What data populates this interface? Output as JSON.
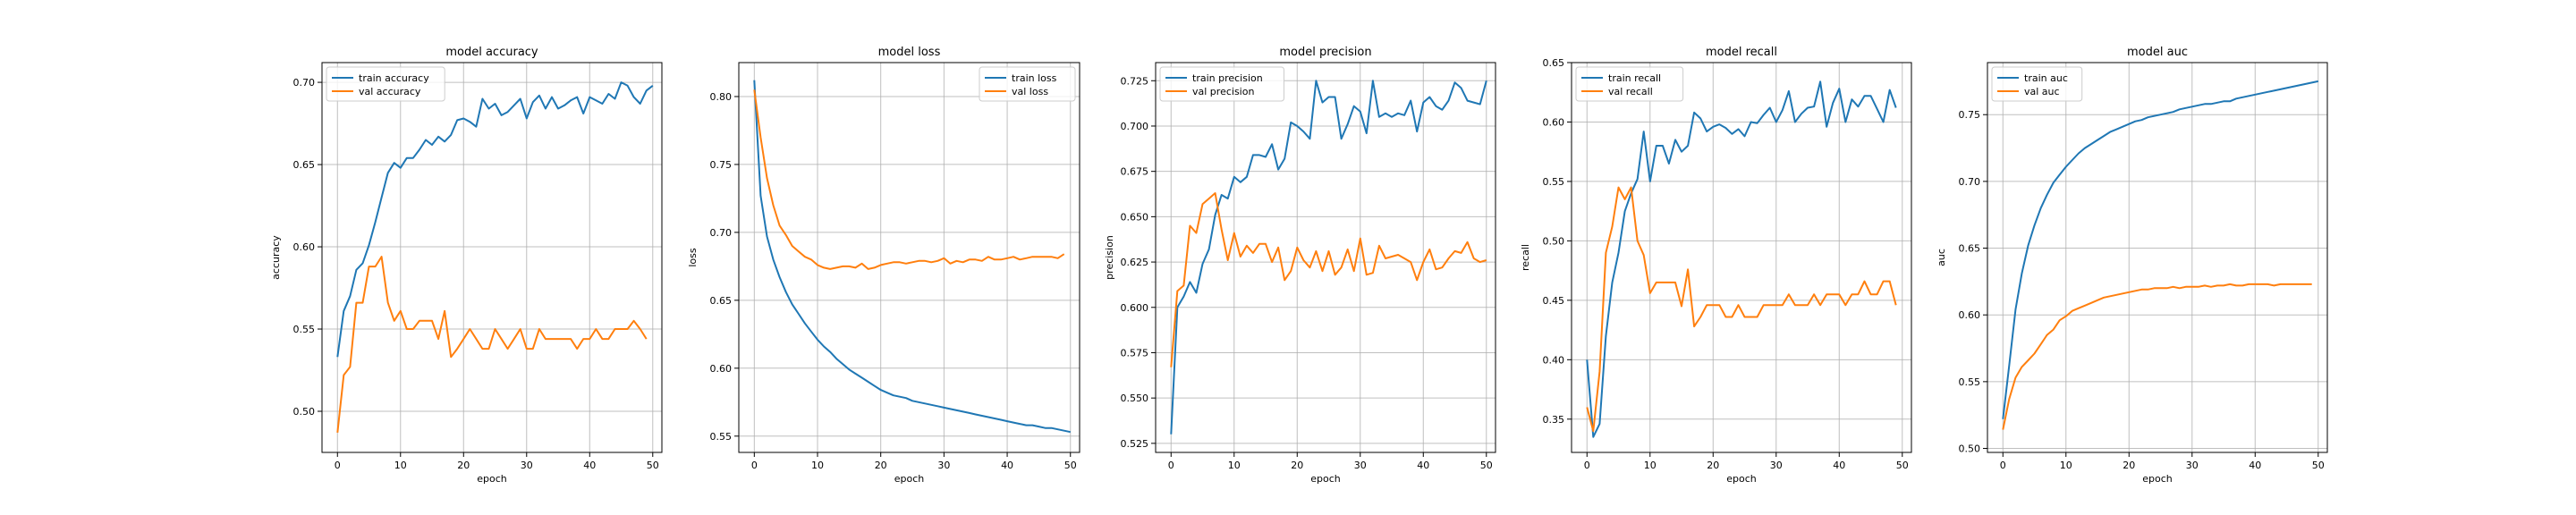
{
  "chart_data": [
    {
      "type": "line",
      "title": "model accuracy",
      "xlabel": "epoch",
      "ylabel": "accuracy",
      "xlim": [
        -2.45,
        51.45
      ],
      "ylim": [
        0.475,
        0.712
      ],
      "xticks": [
        0,
        10,
        20,
        30,
        40,
        50
      ],
      "yticks": [
        0.5,
        0.55,
        0.6,
        0.65,
        0.7
      ],
      "ytick_labels": [
        "0.50",
        "0.55",
        "0.60",
        "0.65",
        "0.70"
      ],
      "grid": true,
      "legend": "upper-left",
      "series": [
        {
          "name": "train accuracy",
          "color": "#1f77b4",
          "values": [
            0.533,
            0.561,
            0.57,
            0.586,
            0.59,
            0.601,
            0.615,
            0.63,
            0.645,
            0.651,
            0.648,
            0.654,
            0.654,
            0.659,
            0.665,
            0.662,
            0.667,
            0.664,
            0.668,
            0.677,
            0.678,
            0.676,
            0.673,
            0.69,
            0.684,
            0.687,
            0.68,
            0.682,
            0.686,
            0.69,
            0.678,
            0.688,
            0.692,
            0.684,
            0.691,
            0.684,
            0.686,
            0.689,
            0.691,
            0.681,
            0.691,
            0.689,
            0.687,
            0.693,
            0.69,
            0.7,
            0.698,
            0.691,
            0.687,
            0.695,
            0.698
          ]
        },
        {
          "name": "val accuracy",
          "color": "#ff7f0e",
          "values": [
            0.487,
            0.522,
            0.527,
            0.566,
            0.566,
            0.588,
            0.588,
            0.594,
            0.566,
            0.555,
            0.561,
            0.55,
            0.55,
            0.555,
            0.555,
            0.555,
            0.544,
            0.561,
            0.533,
            0.538,
            0.544,
            0.55,
            0.544,
            0.538,
            0.538,
            0.55,
            0.544,
            0.538,
            0.544,
            0.55,
            0.538,
            0.538,
            0.55,
            0.544,
            0.544,
            0.544,
            0.544,
            0.544,
            0.538,
            0.544,
            0.544,
            0.55,
            0.544,
            0.544,
            0.55,
            0.55,
            0.55,
            0.555,
            0.55,
            0.544
          ]
        }
      ]
    },
    {
      "type": "line",
      "title": "model loss",
      "xlabel": "epoch",
      "ylabel": "loss",
      "xlim": [
        -2.45,
        51.45
      ],
      "ylim": [
        0.538,
        0.825
      ],
      "xticks": [
        0,
        10,
        20,
        30,
        40,
        50
      ],
      "yticks": [
        0.55,
        0.6,
        0.65,
        0.7,
        0.75,
        0.8
      ],
      "ytick_labels": [
        "0.55",
        "0.60",
        "0.65",
        "0.70",
        "0.75",
        "0.80"
      ],
      "grid": true,
      "legend": "upper-right",
      "series": [
        {
          "name": "train loss",
          "color": "#1f77b4",
          "values": [
            0.812,
            0.727,
            0.697,
            0.68,
            0.667,
            0.656,
            0.647,
            0.64,
            0.633,
            0.627,
            0.621,
            0.616,
            0.612,
            0.607,
            0.603,
            0.599,
            0.596,
            0.593,
            0.59,
            0.587,
            0.584,
            0.582,
            0.58,
            0.579,
            0.578,
            0.576,
            0.575,
            0.574,
            0.573,
            0.572,
            0.571,
            0.57,
            0.569,
            0.568,
            0.567,
            0.566,
            0.565,
            0.564,
            0.563,
            0.562,
            0.561,
            0.56,
            0.559,
            0.558,
            0.558,
            0.557,
            0.556,
            0.556,
            0.555,
            0.554,
            0.553
          ]
        },
        {
          "name": "val loss",
          "color": "#ff7f0e",
          "values": [
            0.805,
            0.77,
            0.74,
            0.72,
            0.705,
            0.698,
            0.69,
            0.686,
            0.682,
            0.68,
            0.676,
            0.674,
            0.673,
            0.674,
            0.675,
            0.675,
            0.674,
            0.677,
            0.673,
            0.674,
            0.676,
            0.677,
            0.678,
            0.678,
            0.677,
            0.678,
            0.679,
            0.679,
            0.678,
            0.679,
            0.681,
            0.677,
            0.679,
            0.678,
            0.68,
            0.68,
            0.679,
            0.682,
            0.68,
            0.68,
            0.681,
            0.682,
            0.68,
            0.681,
            0.682,
            0.682,
            0.682,
            0.682,
            0.681,
            0.684
          ]
        }
      ]
    },
    {
      "type": "line",
      "title": "model precision",
      "xlabel": "epoch",
      "ylabel": "precision",
      "xlim": [
        -2.45,
        51.45
      ],
      "ylim": [
        0.52,
        0.735
      ],
      "xticks": [
        0,
        10,
        20,
        30,
        40,
        50
      ],
      "yticks": [
        0.525,
        0.55,
        0.575,
        0.6,
        0.625,
        0.65,
        0.675,
        0.7,
        0.725
      ],
      "ytick_labels": [
        "0.525",
        "0.550",
        "0.575",
        "0.600",
        "0.625",
        "0.650",
        "0.675",
        "0.700",
        "0.725"
      ],
      "grid": true,
      "legend": "upper-left",
      "series": [
        {
          "name": "train precision",
          "color": "#1f77b4",
          "values": [
            0.53,
            0.6,
            0.606,
            0.614,
            0.608,
            0.624,
            0.632,
            0.651,
            0.662,
            0.66,
            0.672,
            0.669,
            0.672,
            0.684,
            0.684,
            0.683,
            0.69,
            0.676,
            0.682,
            0.702,
            0.7,
            0.697,
            0.693,
            0.725,
            0.713,
            0.716,
            0.716,
            0.693,
            0.701,
            0.711,
            0.708,
            0.696,
            0.725,
            0.705,
            0.707,
            0.705,
            0.707,
            0.706,
            0.714,
            0.697,
            0.713,
            0.716,
            0.711,
            0.709,
            0.714,
            0.724,
            0.721,
            0.714,
            0.713,
            0.712,
            0.725
          ]
        },
        {
          "name": "val precision",
          "color": "#ff7f0e",
          "values": [
            0.567,
            0.609,
            0.612,
            0.645,
            0.641,
            0.657,
            0.66,
            0.663,
            0.643,
            0.626,
            0.641,
            0.628,
            0.634,
            0.63,
            0.635,
            0.635,
            0.625,
            0.633,
            0.615,
            0.62,
            0.633,
            0.626,
            0.622,
            0.631,
            0.62,
            0.631,
            0.618,
            0.622,
            0.632,
            0.62,
            0.638,
            0.618,
            0.619,
            0.634,
            0.627,
            0.628,
            0.629,
            0.627,
            0.625,
            0.615,
            0.625,
            0.632,
            0.621,
            0.622,
            0.627,
            0.631,
            0.63,
            0.636,
            0.627,
            0.625,
            0.626
          ]
        }
      ]
    },
    {
      "type": "line",
      "title": "model recall",
      "xlabel": "epoch",
      "ylabel": "recall",
      "xlim": [
        -2.45,
        51.45
      ],
      "ylim": [
        0.322,
        0.65
      ],
      "xticks": [
        0,
        10,
        20,
        30,
        40,
        50
      ],
      "yticks": [
        0.35,
        0.4,
        0.45,
        0.5,
        0.55,
        0.6,
        0.65
      ],
      "ytick_labels": [
        "0.35",
        "0.40",
        "0.45",
        "0.50",
        "0.55",
        "0.60",
        "0.65"
      ],
      "grid": true,
      "legend": "upper-left",
      "series": [
        {
          "name": "train recall",
          "color": "#1f77b4",
          "values": [
            0.4,
            0.335,
            0.346,
            0.42,
            0.465,
            0.49,
            0.525,
            0.54,
            0.552,
            0.592,
            0.55,
            0.58,
            0.58,
            0.565,
            0.585,
            0.575,
            0.58,
            0.608,
            0.603,
            0.592,
            0.596,
            0.598,
            0.595,
            0.59,
            0.594,
            0.588,
            0.6,
            0.599,
            0.606,
            0.612,
            0.6,
            0.61,
            0.626,
            0.6,
            0.607,
            0.612,
            0.613,
            0.634,
            0.596,
            0.616,
            0.628,
            0.6,
            0.619,
            0.613,
            0.622,
            0.622,
            0.611,
            0.6,
            0.627,
            0.612
          ]
        },
        {
          "name": "val recall",
          "color": "#ff7f0e",
          "values": [
            0.36,
            0.34,
            0.39,
            0.49,
            0.512,
            0.545,
            0.535,
            0.545,
            0.5,
            0.488,
            0.456,
            0.465,
            0.465,
            0.465,
            0.465,
            0.445,
            0.476,
            0.428,
            0.436,
            0.446,
            0.446,
            0.446,
            0.436,
            0.436,
            0.446,
            0.436,
            0.436,
            0.436,
            0.446,
            0.446,
            0.446,
            0.446,
            0.455,
            0.446,
            0.446,
            0.446,
            0.455,
            0.446,
            0.455,
            0.455,
            0.455,
            0.446,
            0.455,
            0.455,
            0.466,
            0.455,
            0.455,
            0.466,
            0.466,
            0.446
          ]
        }
      ]
    },
    {
      "type": "line",
      "title": "model auc",
      "xlabel": "epoch",
      "ylabel": "auc",
      "xlim": [
        -2.45,
        51.45
      ],
      "ylim": [
        0.497,
        0.789
      ],
      "xticks": [
        0,
        10,
        20,
        30,
        40,
        50
      ],
      "yticks": [
        0.5,
        0.55,
        0.6,
        0.65,
        0.7,
        0.75
      ],
      "ytick_labels": [
        "0.50",
        "0.55",
        "0.60",
        "0.65",
        "0.70",
        "0.75"
      ],
      "grid": true,
      "legend": "upper-left",
      "series": [
        {
          "name": "train auc",
          "color": "#1f77b4",
          "values": [
            0.522,
            0.562,
            0.604,
            0.631,
            0.652,
            0.667,
            0.68,
            0.69,
            0.699,
            0.705,
            0.711,
            0.716,
            0.721,
            0.725,
            0.728,
            0.731,
            0.734,
            0.737,
            0.739,
            0.741,
            0.743,
            0.745,
            0.746,
            0.748,
            0.749,
            0.75,
            0.751,
            0.752,
            0.754,
            0.755,
            0.756,
            0.757,
            0.758,
            0.758,
            0.759,
            0.76,
            0.76,
            0.762,
            0.763,
            0.764,
            0.765,
            0.766,
            0.767,
            0.768,
            0.769,
            0.77,
            0.771,
            0.772,
            0.773,
            0.774,
            0.775
          ]
        },
        {
          "name": "val auc",
          "color": "#ff7f0e",
          "values": [
            0.514,
            0.537,
            0.553,
            0.561,
            0.566,
            0.571,
            0.578,
            0.585,
            0.589,
            0.596,
            0.599,
            0.603,
            0.605,
            0.607,
            0.609,
            0.611,
            0.613,
            0.614,
            0.615,
            0.616,
            0.617,
            0.618,
            0.619,
            0.619,
            0.62,
            0.62,
            0.62,
            0.621,
            0.62,
            0.621,
            0.621,
            0.621,
            0.622,
            0.621,
            0.622,
            0.622,
            0.623,
            0.622,
            0.622,
            0.623,
            0.623,
            0.623,
            0.623,
            0.622,
            0.623,
            0.623,
            0.623,
            0.623,
            0.623,
            0.623
          ]
        }
      ]
    }
  ]
}
